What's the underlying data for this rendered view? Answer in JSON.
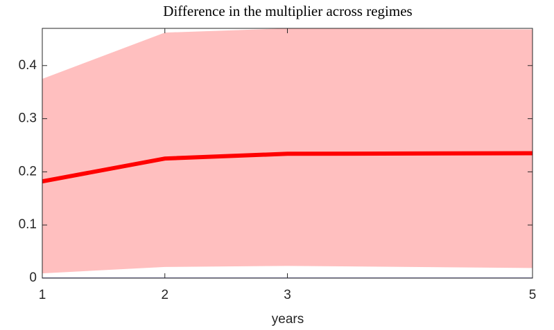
{
  "chart_data": {
    "type": "line",
    "title": "Difference in the multiplier across regimes",
    "xlabel": "years",
    "x": [
      1,
      2,
      3,
      5
    ],
    "series": [
      {
        "color": "#ff0000",
        "values": [
          0.182,
          0.225,
          0.234,
          0.235
        ]
      },
      {
        "color": "#1f1f8c",
        "values": [
          0,
          0,
          0,
          0
        ]
      }
    ],
    "band": {
      "color": "#ffbfbf",
      "lower": [
        0.009,
        0.021,
        0.023,
        0.019
      ],
      "upper": [
        0.375,
        0.462,
        0.47,
        0.468
      ]
    },
    "xlim": [
      1,
      5
    ],
    "xticks": [
      1,
      2,
      3,
      5
    ],
    "ylim": [
      0,
      0.47
    ],
    "yticks": [
      0,
      0.1,
      0.2,
      0.3,
      0.4
    ]
  }
}
